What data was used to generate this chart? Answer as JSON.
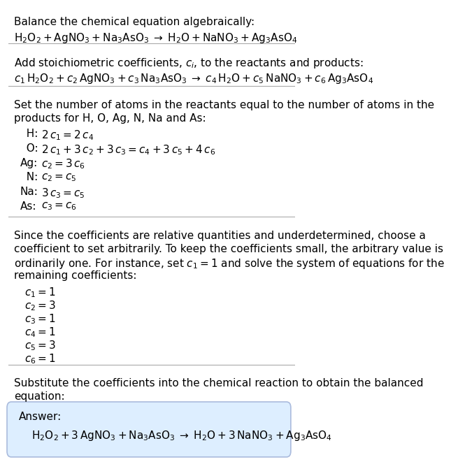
{
  "bg_color": "#ffffff",
  "text_color": "#000000",
  "answer_box_color": "#ddeeff",
  "answer_box_edge": "#aabbdd",
  "font_size": 11,
  "title_section": "Balance the chemical equation algebraically:",
  "equation_line": "$\\mathrm{H_2O_2 + AgNO_3 + Na_3AsO_3 \\;\\rightarrow\\; H_2O + NaNO_3 + Ag_3AsO_4}$",
  "section2_intro": "Add stoichiometric coefficients, $c_i$, to the reactants and products:",
  "section2_eq": "$c_1\\,\\mathrm{H_2O_2} + c_2\\,\\mathrm{AgNO_3} + c_3\\,\\mathrm{Na_3AsO_3} \\;\\rightarrow\\; c_4\\,\\mathrm{H_2O} + c_5\\,\\mathrm{NaNO_3} + c_6\\,\\mathrm{Ag_3AsO_4}$",
  "section3_intro1": "Set the number of atoms in the reactants equal to the number of atoms in the",
  "section3_intro2": "products for H, O, Ag, N, Na and As:",
  "atom_equations": [
    [
      "  H:",
      "$2\\,c_1 = 2\\,c_4$"
    ],
    [
      "  O:",
      "$2\\,c_1 + 3\\,c_2 + 3\\,c_3 = c_4 + 3\\,c_5 + 4\\,c_6$"
    ],
    [
      "Ag:",
      "$c_2 = 3\\,c_6$"
    ],
    [
      "  N:",
      "$c_2 = c_5$"
    ],
    [
      "Na:",
      "$3\\,c_3 = c_5$"
    ],
    [
      "As:",
      "$c_3 = c_6$"
    ]
  ],
  "section4_lines": [
    "Since the coefficients are relative quantities and underdetermined, choose a",
    "coefficient to set arbitrarily. To keep the coefficients small, the arbitrary value is",
    "ordinarily one. For instance, set $c_1 = 1$ and solve the system of equations for the",
    "remaining coefficients:"
  ],
  "coeff_list": [
    "$c_1 = 1$",
    "$c_2 = 3$",
    "$c_3 = 1$",
    "$c_4 = 1$",
    "$c_5 = 3$",
    "$c_6 = 1$"
  ],
  "section5_lines": [
    "Substitute the coefficients into the chemical reaction to obtain the balanced",
    "equation:"
  ],
  "answer_label": "Answer:",
  "answer_eq": "$\\mathrm{H_2O_2 + 3\\,AgNO_3 + Na_3AsO_3 \\;\\rightarrow\\; H_2O + 3\\,NaNO_3 + Ag_3AsO_4}$"
}
